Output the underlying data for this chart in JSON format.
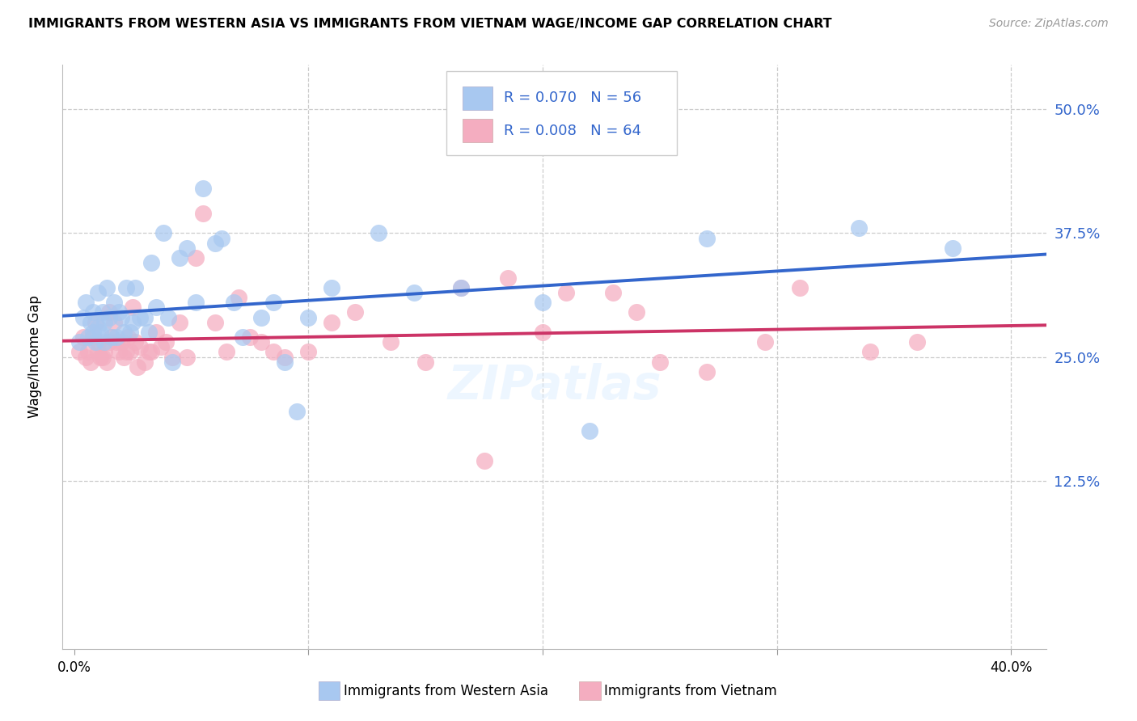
{
  "title": "IMMIGRANTS FROM WESTERN ASIA VS IMMIGRANTS FROM VIETNAM WAGE/INCOME GAP CORRELATION CHART",
  "source": "Source: ZipAtlas.com",
  "ylabel": "Wage/Income Gap",
  "ytick_values": [
    0.125,
    0.25,
    0.375,
    0.5
  ],
  "ytick_labels": [
    "12.5%",
    "25.0%",
    "37.5%",
    "50.0%"
  ],
  "xtick_values": [
    0.0,
    0.1,
    0.2,
    0.3,
    0.4
  ],
  "xmin": -0.005,
  "xmax": 0.415,
  "ymin": -0.045,
  "ymax": 0.545,
  "blue_R": "0.070",
  "blue_N": "56",
  "pink_R": "0.008",
  "pink_N": "64",
  "blue_color": "#a8c8f0",
  "pink_color": "#f4adc0",
  "blue_line_color": "#3366cc",
  "pink_line_color": "#cc3366",
  "blue_label": "Immigrants from Western Asia",
  "pink_label": "Immigrants from Vietnam",
  "watermark": "ZIPatlas",
  "text_color_blue": "#3366cc",
  "blue_x": [
    0.002,
    0.004,
    0.005,
    0.006,
    0.007,
    0.008,
    0.008,
    0.009,
    0.01,
    0.01,
    0.011,
    0.012,
    0.013,
    0.013,
    0.014,
    0.015,
    0.016,
    0.017,
    0.018,
    0.019,
    0.02,
    0.021,
    0.022,
    0.024,
    0.025,
    0.026,
    0.028,
    0.03,
    0.032,
    0.033,
    0.035,
    0.038,
    0.04,
    0.042,
    0.045,
    0.048,
    0.052,
    0.055,
    0.06,
    0.063,
    0.068,
    0.072,
    0.08,
    0.085,
    0.09,
    0.095,
    0.1,
    0.11,
    0.13,
    0.145,
    0.165,
    0.2,
    0.22,
    0.27,
    0.335,
    0.375
  ],
  "blue_y": [
    0.265,
    0.29,
    0.305,
    0.27,
    0.285,
    0.295,
    0.275,
    0.265,
    0.28,
    0.315,
    0.275,
    0.295,
    0.285,
    0.265,
    0.32,
    0.29,
    0.27,
    0.305,
    0.27,
    0.295,
    0.29,
    0.275,
    0.32,
    0.275,
    0.285,
    0.32,
    0.29,
    0.29,
    0.275,
    0.345,
    0.3,
    0.375,
    0.29,
    0.245,
    0.35,
    0.36,
    0.305,
    0.42,
    0.365,
    0.37,
    0.305,
    0.27,
    0.29,
    0.305,
    0.245,
    0.195,
    0.29,
    0.32,
    0.375,
    0.315,
    0.32,
    0.305,
    0.175,
    0.37,
    0.38,
    0.36
  ],
  "pink_x": [
    0.002,
    0.004,
    0.005,
    0.006,
    0.007,
    0.008,
    0.009,
    0.01,
    0.01,
    0.011,
    0.012,
    0.013,
    0.014,
    0.015,
    0.015,
    0.016,
    0.017,
    0.018,
    0.019,
    0.02,
    0.021,
    0.022,
    0.023,
    0.024,
    0.025,
    0.026,
    0.027,
    0.028,
    0.03,
    0.032,
    0.033,
    0.035,
    0.037,
    0.039,
    0.042,
    0.045,
    0.048,
    0.052,
    0.055,
    0.06,
    0.065,
    0.07,
    0.075,
    0.08,
    0.085,
    0.09,
    0.1,
    0.11,
    0.12,
    0.135,
    0.15,
    0.165,
    0.185,
    0.21,
    0.24,
    0.27,
    0.295,
    0.31,
    0.34,
    0.36,
    0.175,
    0.2,
    0.23,
    0.25
  ],
  "pink_y": [
    0.255,
    0.27,
    0.25,
    0.255,
    0.245,
    0.27,
    0.285,
    0.255,
    0.265,
    0.25,
    0.25,
    0.255,
    0.245,
    0.265,
    0.295,
    0.27,
    0.285,
    0.265,
    0.255,
    0.265,
    0.25,
    0.255,
    0.27,
    0.255,
    0.3,
    0.265,
    0.24,
    0.26,
    0.245,
    0.255,
    0.255,
    0.275,
    0.26,
    0.265,
    0.25,
    0.285,
    0.25,
    0.35,
    0.395,
    0.285,
    0.255,
    0.31,
    0.27,
    0.265,
    0.255,
    0.25,
    0.255,
    0.285,
    0.295,
    0.265,
    0.245,
    0.32,
    0.33,
    0.315,
    0.295,
    0.235,
    0.265,
    0.32,
    0.255,
    0.265,
    0.145,
    0.275,
    0.315,
    0.245
  ]
}
